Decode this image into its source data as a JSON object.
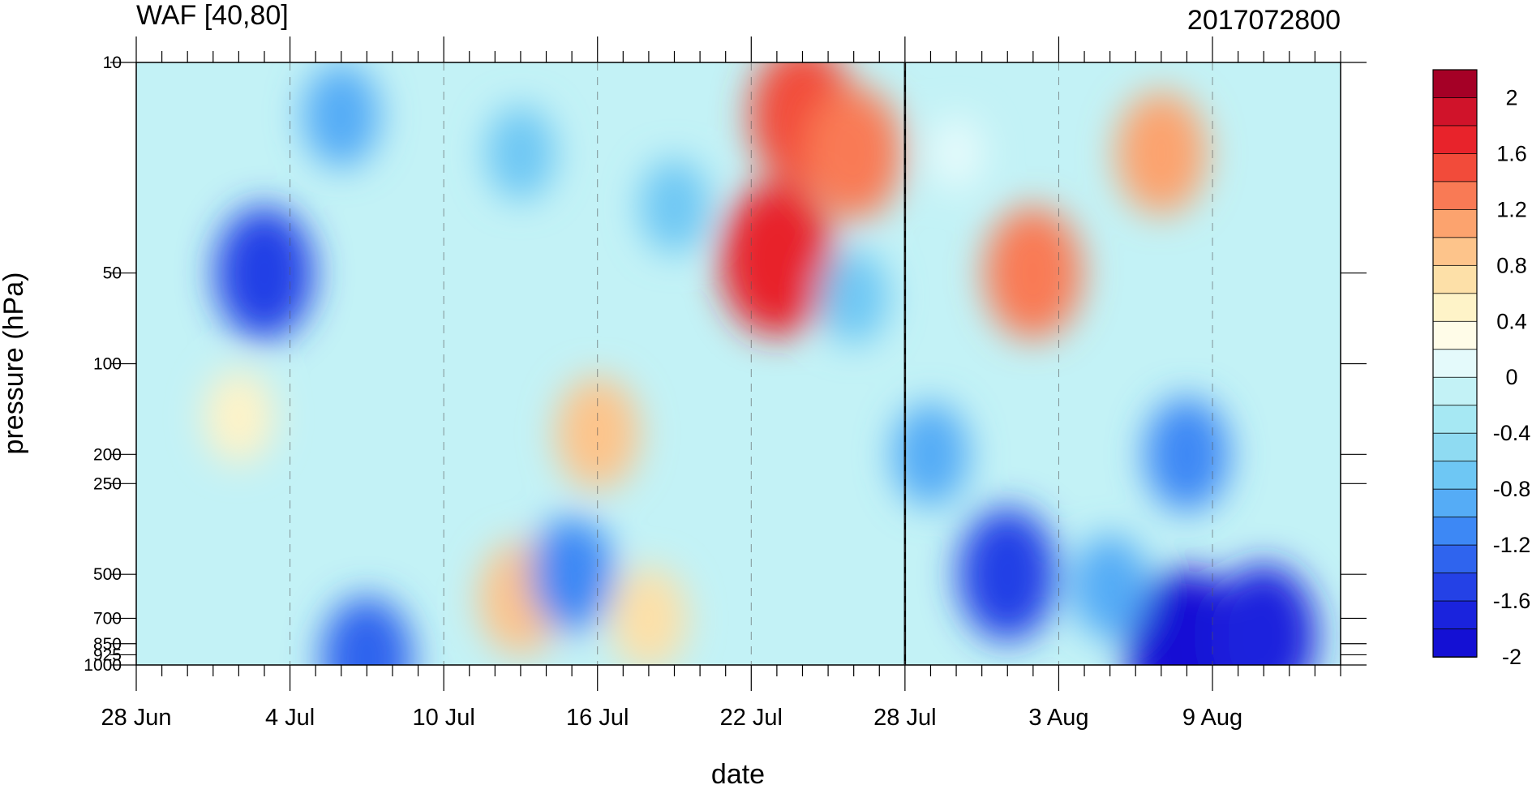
{
  "chart_data": {
    "type": "contour",
    "title": "WAF [40,80]",
    "subtitle": "2017072800",
    "xlabel": "date",
    "ylabel": "pressure (hPa)",
    "x_ticks": [
      "28 Jun",
      "4 Jul",
      "10 Jul",
      "16 Jul",
      "22 Jul",
      "28 Jul",
      "3 Aug",
      "9 Aug"
    ],
    "x_range": [
      "2017-06-28",
      "2017-08-14"
    ],
    "y_ticks": [
      "10",
      "50",
      "100",
      "200",
      "250",
      "500",
      "700",
      "850",
      "925",
      "1000"
    ],
    "y_range": [
      1000,
      10
    ],
    "y_scale": "log",
    "marker_date": "2017-07-28",
    "colorbar": {
      "labels": [
        "2",
        "1.6",
        "1.2",
        "0.8",
        "0.4",
        "0",
        "-0.4",
        "-0.8",
        "-1.2",
        "-1.6",
        "-2"
      ],
      "levels": [
        2.2,
        2.0,
        1.8,
        1.6,
        1.4,
        1.2,
        1.0,
        0.8,
        0.6,
        0.4,
        0.2,
        0.0,
        -0.2,
        -0.4,
        -0.6,
        -0.8,
        -1.0,
        -1.2,
        -1.4,
        -1.6,
        -1.8,
        -2.0,
        -2.2
      ],
      "colors": [
        "#a50026",
        "#d0132a",
        "#e8232b",
        "#f24b3a",
        "#f97a55",
        "#fca36e",
        "#fdc48b",
        "#fde0a8",
        "#fef3c8",
        "#fffce8",
        "#e4fafb",
        "#c3f2f6",
        "#a6e8f3",
        "#8fdbf2",
        "#6ec7f4",
        "#55acf6",
        "#3d88f5",
        "#2f64ee",
        "#2441e6",
        "#1a23dd",
        "#1410d4"
      ]
    },
    "features": [
      {
        "date": "2017-07-03",
        "p": 50,
        "value": -1.4
      },
      {
        "date": "2017-07-02",
        "p": 150,
        "value": 0.6
      },
      {
        "date": "2017-07-13",
        "p": 600,
        "value": 1.0
      },
      {
        "date": "2017-07-15",
        "p": 500,
        "value": -1.0
      },
      {
        "date": "2017-07-16",
        "p": 170,
        "value": 1.0
      },
      {
        "date": "2017-07-18",
        "p": 700,
        "value": 0.8
      },
      {
        "date": "2017-07-23",
        "p": 45,
        "value": 1.8
      },
      {
        "date": "2017-07-24",
        "p": 15,
        "value": 1.6
      },
      {
        "date": "2017-07-26",
        "p": 20,
        "value": 1.4
      },
      {
        "date": "2017-07-26",
        "p": 60,
        "value": -0.6
      },
      {
        "date": "2017-08-02",
        "p": 50,
        "value": 1.4
      },
      {
        "date": "2017-08-07",
        "p": 20,
        "value": 1.2
      },
      {
        "date": "2017-07-19",
        "p": 30,
        "value": -0.6
      },
      {
        "date": "2017-07-06",
        "p": 15,
        "value": -0.8
      },
      {
        "date": "2017-07-13",
        "p": 20,
        "value": -0.6
      },
      {
        "date": "2017-08-01",
        "p": 500,
        "value": -1.4
      },
      {
        "date": "2017-08-08",
        "p": 200,
        "value": -1.0
      },
      {
        "date": "2017-08-08",
        "p": 900,
        "value": -2.0
      },
      {
        "date": "2017-08-11",
        "p": 800,
        "value": -1.6
      },
      {
        "date": "2017-08-05",
        "p": 550,
        "value": -0.8
      },
      {
        "date": "2017-07-29",
        "p": 200,
        "value": -0.8
      },
      {
        "date": "2017-07-07",
        "p": 950,
        "value": -1.2
      },
      {
        "date": "2017-07-30",
        "p": 20,
        "value": 0.2
      }
    ]
  }
}
